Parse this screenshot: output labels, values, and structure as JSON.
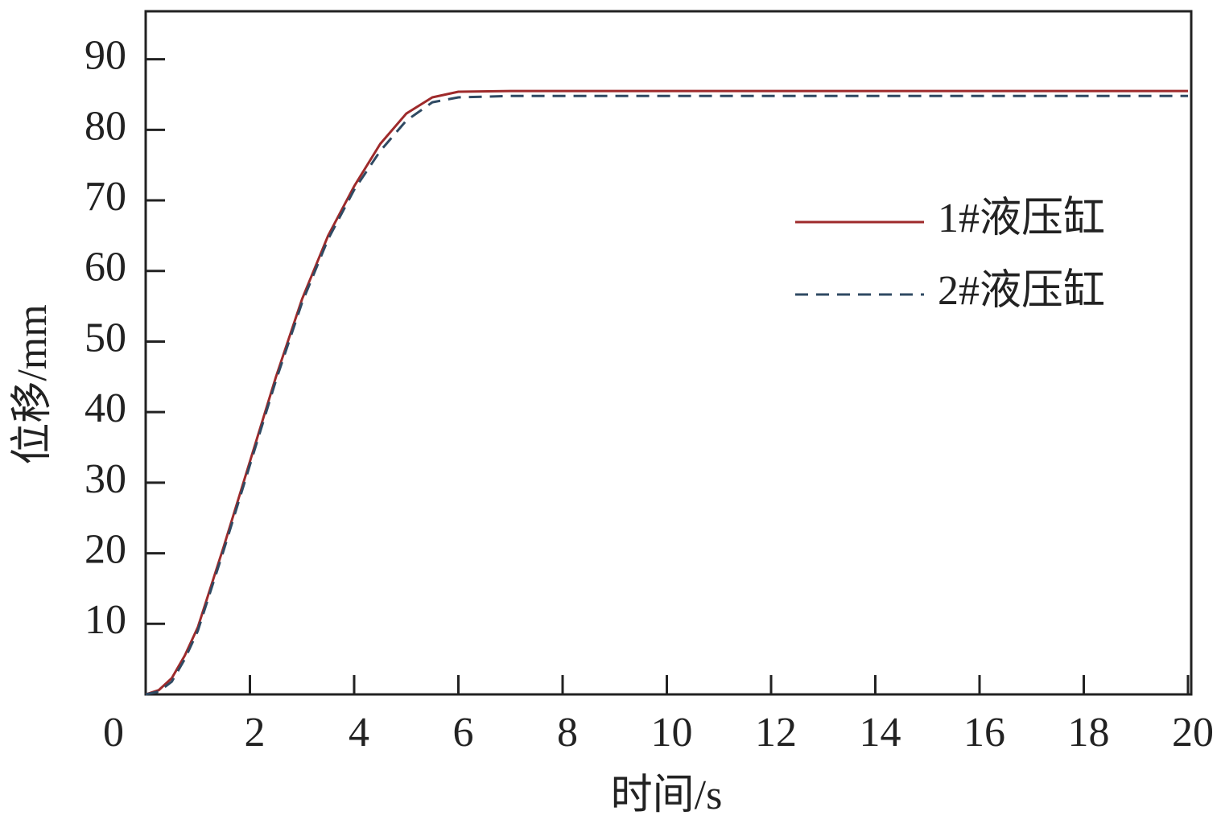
{
  "chart_data": {
    "type": "line",
    "x_label": "时间/s",
    "y_label": "位移/mm",
    "x": [
      0,
      0.25,
      0.5,
      0.75,
      1,
      1.5,
      2,
      2.5,
      3,
      3.5,
      4,
      4.5,
      5,
      5.5,
      6,
      7,
      20
    ],
    "series": [
      {
        "name": "1#液压缸",
        "color": "#9e2a2b",
        "dash": false,
        "values": [
          0,
          0.6,
          2.3,
          5.5,
          9.5,
          21,
          33,
          45,
          56,
          65,
          72,
          78,
          82.3,
          84.6,
          85.4,
          85.5,
          85.5
        ]
      },
      {
        "name": "2#液压缸",
        "color": "#2f4a63",
        "dash": true,
        "values": [
          0,
          0.4,
          1.8,
          5,
          9,
          20.5,
          32.5,
          44.5,
          55.5,
          64.5,
          71.5,
          77,
          81.3,
          83.9,
          84.6,
          84.8,
          84.8
        ]
      }
    ],
    "xlim": [
      0,
      20
    ],
    "ylim": [
      0,
      96.8
    ],
    "xticks": [
      0,
      2,
      4,
      6,
      8,
      10,
      12,
      14,
      16,
      18,
      20
    ],
    "yticks": [
      10,
      20,
      30,
      40,
      50,
      60,
      70,
      80,
      90
    ],
    "grid": false,
    "legend": "upper right"
  }
}
